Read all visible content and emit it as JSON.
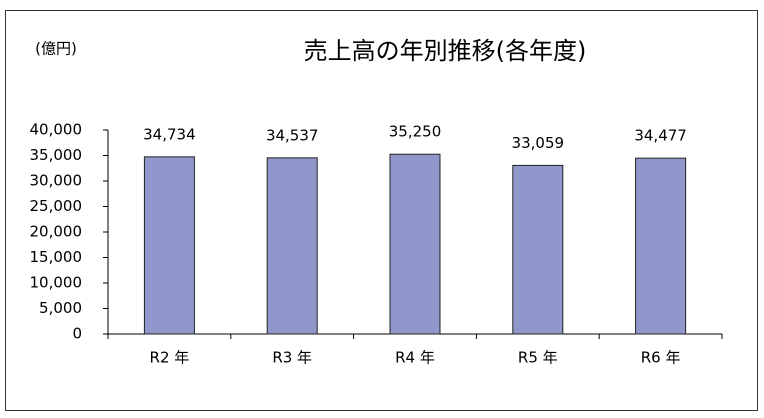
{
  "chart_data": {
    "type": "bar",
    "title": "売上高の年別推移(各年度)",
    "unit": "(億円)",
    "categories": [
      "R2 年",
      "R3 年",
      "R4 年",
      "R5 年",
      "R6 年"
    ],
    "values": [
      34734,
      34537,
      35250,
      33059,
      34477
    ],
    "value_labels": [
      "34,734",
      "34,537",
      "35,250",
      "33,059",
      "34,477"
    ],
    "color": "#8f97cb",
    "ylim": [
      0,
      40000
    ],
    "yticks": [
      0,
      {
        "value": 5000,
        "label": "5,000"
      },
      {
        "value": 10000,
        "label": "10,000"
      },
      {
        "value": 15000,
        "label": "15,000"
      },
      {
        "value": 20000,
        "label": "20,000"
      },
      {
        "value": 25000,
        "label": "25,000"
      },
      {
        "value": 30000,
        "label": "30,000"
      },
      {
        "value": 35000,
        "label": "35,000"
      },
      {
        "value": 40000,
        "label": "40,000"
      }
    ],
    "grid": false
  }
}
